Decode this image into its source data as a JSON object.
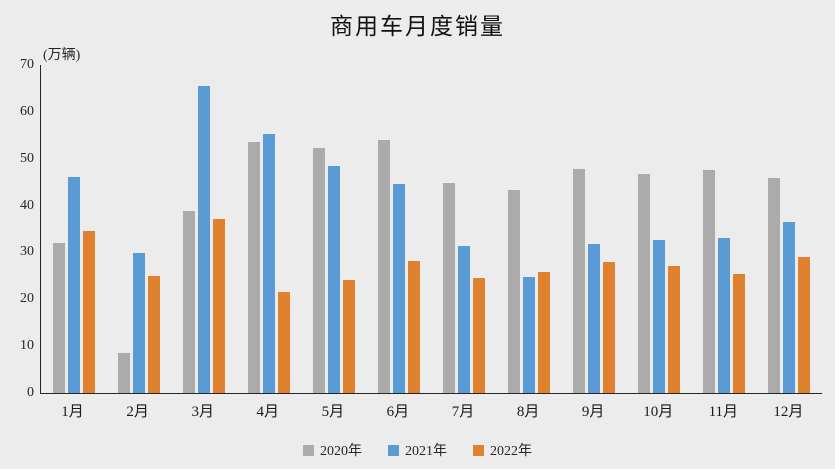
{
  "title": "商用车月度销量",
  "y_axis_unit": "(万辆)",
  "colors": {
    "background": "#ECECEC",
    "axis": "#262626",
    "text": "#262626",
    "series_2020": "#ABABAB",
    "series_2021": "#5B9BD5",
    "series_2022": "#E0812F"
  },
  "chart_data": {
    "type": "bar",
    "title": "商用车月度销量",
    "ylabel": "(万辆)",
    "xlabel": "",
    "ylim": [
      0,
      70
    ],
    "yticks": [
      0,
      10,
      20,
      30,
      40,
      50,
      60,
      70
    ],
    "grid": false,
    "legend_position": "bottom",
    "categories": [
      "1月",
      "2月",
      "3月",
      "4月",
      "5月",
      "6月",
      "7月",
      "8月",
      "9月",
      "10月",
      "11月",
      "12月"
    ],
    "series": [
      {
        "name": "2020年",
        "color": "#ABABAB",
        "values": [
          32.1,
          8.5,
          38.9,
          53.6,
          52.2,
          53.9,
          44.9,
          43.3,
          47.9,
          46.7,
          47.6,
          45.9
        ]
      },
      {
        "name": "2021年",
        "color": "#5B9BD5",
        "values": [
          46.1,
          29.9,
          65.5,
          55.2,
          48.4,
          44.7,
          31.4,
          24.8,
          31.9,
          32.7,
          33.0,
          36.4
        ]
      },
      {
        "name": "2022年",
        "color": "#E0812F",
        "values": [
          34.5,
          25.0,
          37.1,
          21.6,
          24.1,
          28.2,
          24.6,
          25.9,
          28.0,
          27.2,
          25.4,
          29.1
        ]
      }
    ]
  }
}
